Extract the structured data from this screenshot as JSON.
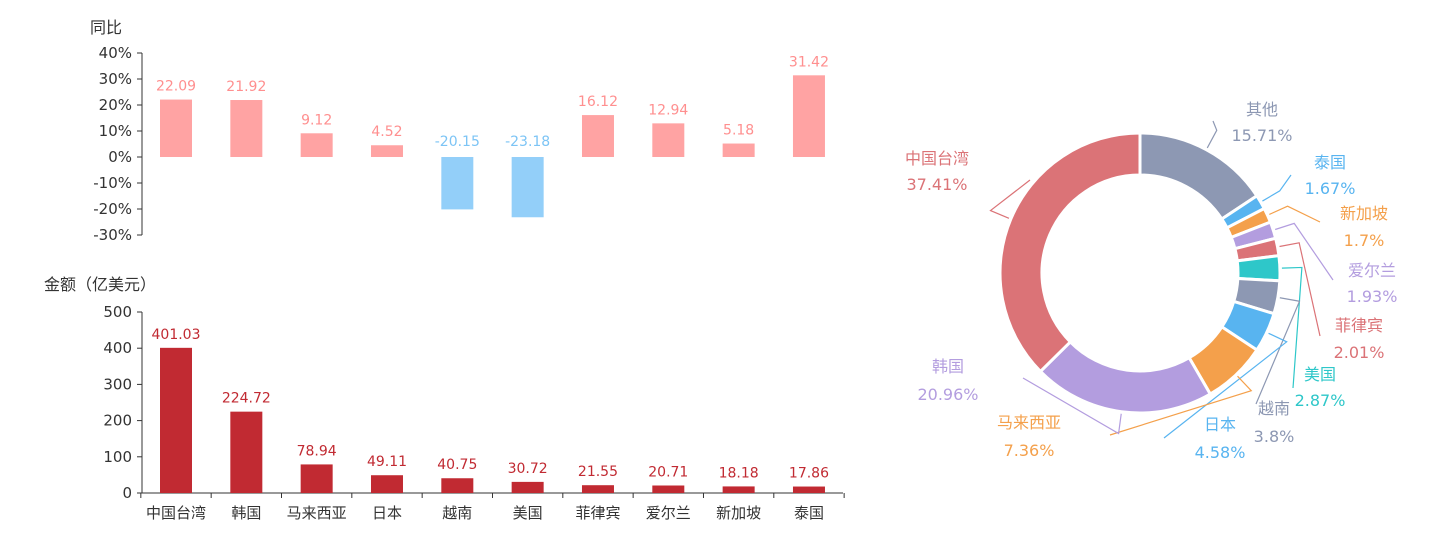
{
  "chart_data": [
    {
      "type": "bar",
      "ylabel": "同比",
      "categories": [
        "中国台湾",
        "韩国",
        "马来西亚",
        "日本",
        "越南",
        "美国",
        "菲律宾",
        "爱尔兰",
        "新加坡",
        "泰国"
      ],
      "values": [
        22.09,
        21.92,
        9.12,
        4.52,
        -20.15,
        -23.18,
        16.12,
        12.94,
        5.18,
        31.42
      ],
      "value_labels": [
        "22.09",
        "21.92",
        "9.12",
        "4.52",
        "-20.15",
        "-23.18",
        "16.12",
        "12.94",
        "5.18",
        "31.42"
      ],
      "ylim": [
        -30,
        40
      ],
      "yticks": [
        40,
        30,
        20,
        10,
        0,
        -10,
        -20,
        -30
      ],
      "ytick_labels": [
        "40%",
        "30%",
        "20%",
        "10%",
        "0%",
        "-10%",
        "-20%",
        "-30%"
      ],
      "colors": {
        "positive": "#ffa3a3",
        "negative": "#93cff9",
        "positive_label": "#ff8f8f",
        "negative_label": "#7cc4f5"
      },
      "grid": false
    },
    {
      "type": "bar",
      "ylabel": "金额（亿美元）",
      "categories": [
        "中国台湾",
        "韩国",
        "马来西亚",
        "日本",
        "越南",
        "美国",
        "菲律宾",
        "爱尔兰",
        "新加坡",
        "泰国"
      ],
      "values": [
        401.03,
        224.72,
        78.94,
        49.11,
        40.75,
        30.72,
        21.55,
        20.71,
        18.18,
        17.86
      ],
      "value_labels": [
        "401.03",
        "224.72",
        "78.94",
        "49.11",
        "40.75",
        "30.72",
        "21.55",
        "20.71",
        "18.18",
        "17.86"
      ],
      "ylim": [
        0,
        500
      ],
      "yticks": [
        500,
        400,
        300,
        200,
        100,
        0
      ],
      "ytick_labels": [
        "500",
        "400",
        "300",
        "200",
        "100",
        "0"
      ],
      "colors": {
        "bar": "#c12a32",
        "label": "#c12a32"
      },
      "grid": false
    },
    {
      "type": "pie",
      "donut": true,
      "slices": [
        {
          "name": "其他",
          "value": 15.71,
          "label": "15.71%",
          "color": "#8d98b3"
        },
        {
          "name": "泰国",
          "value": 1.67,
          "label": "1.67%",
          "color": "#58b4f0"
        },
        {
          "name": "新加坡",
          "value": 1.7,
          "label": "1.7%",
          "color": "#f4a04b"
        },
        {
          "name": "爱尔兰",
          "value": 1.93,
          "label": "1.93%",
          "color": "#b39ddf"
        },
        {
          "name": "菲律宾",
          "value": 2.01,
          "label": "2.01%",
          "color": "#db7377"
        },
        {
          "name": "美国",
          "value": 2.87,
          "label": "2.87%",
          "color": "#2ec7c9"
        },
        {
          "name": "越南",
          "value": 3.8,
          "label": "3.8%",
          "color": "#8d98b3"
        },
        {
          "name": "日本",
          "value": 4.58,
          "label": "4.58%",
          "color": "#58b4f0"
        },
        {
          "name": "马来西亚",
          "value": 7.36,
          "label": "7.36%",
          "color": "#f4a04b"
        },
        {
          "name": "韩国",
          "value": 20.96,
          "label": "20.96%",
          "color": "#b39ddf"
        },
        {
          "name": "中国台湾",
          "value": 37.41,
          "label": "37.41%",
          "color": "#db7377"
        }
      ]
    }
  ]
}
